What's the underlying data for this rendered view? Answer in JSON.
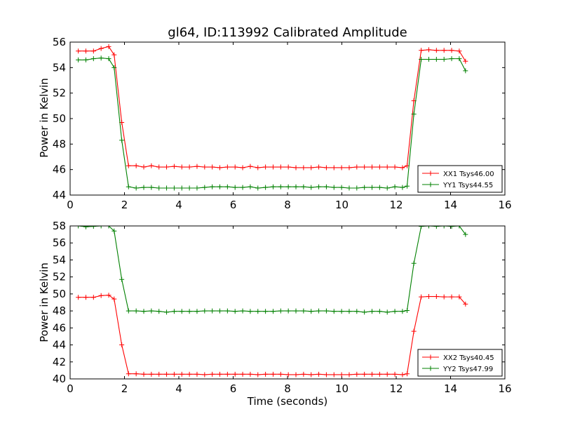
{
  "chart_data": [
    {
      "type": "line",
      "title": "gl64, ID:113992 Calibrated Amplitude",
      "xlabel": "",
      "ylabel": "Power in Kelvin",
      "xlim": [
        0,
        16
      ],
      "ylim": [
        44,
        56
      ],
      "xticks": [
        0,
        2,
        4,
        6,
        8,
        10,
        12,
        14,
        16
      ],
      "yticks": [
        44,
        46,
        48,
        50,
        52,
        54,
        56
      ],
      "grid": false,
      "legend_position": "lower-right",
      "x": [
        0.3,
        0.58,
        0.86,
        1.14,
        1.42,
        1.62,
        1.9,
        2.15,
        2.43,
        2.71,
        2.99,
        3.27,
        3.55,
        3.83,
        4.11,
        4.39,
        4.67,
        4.95,
        5.23,
        5.51,
        5.79,
        6.07,
        6.35,
        6.63,
        6.91,
        7.19,
        7.47,
        7.75,
        8.03,
        8.31,
        8.59,
        8.87,
        9.15,
        9.43,
        9.71,
        9.99,
        10.27,
        10.55,
        10.83,
        11.11,
        11.39,
        11.67,
        11.95,
        12.23,
        12.4,
        12.65,
        12.92,
        13.2,
        13.48,
        13.76,
        14.04,
        14.32,
        14.55
      ],
      "series": [
        {
          "name": "XX1 Tsys46.00",
          "color": "#ff0000",
          "values": [
            55.3,
            55.3,
            55.3,
            55.5,
            55.65,
            55.0,
            49.7,
            46.3,
            46.3,
            46.2,
            46.3,
            46.2,
            46.2,
            46.25,
            46.2,
            46.2,
            46.25,
            46.2,
            46.2,
            46.15,
            46.2,
            46.2,
            46.15,
            46.25,
            46.15,
            46.2,
            46.2,
            46.2,
            46.2,
            46.15,
            46.15,
            46.15,
            46.2,
            46.15,
            46.15,
            46.15,
            46.15,
            46.2,
            46.2,
            46.2,
            46.2,
            46.2,
            46.2,
            46.15,
            46.3,
            51.4,
            55.35,
            55.4,
            55.35,
            55.35,
            55.35,
            55.3,
            54.5
          ]
        },
        {
          "name": "YY1 Tsys44.55",
          "color": "#008000",
          "values": [
            54.6,
            54.6,
            54.7,
            54.75,
            54.7,
            54.0,
            48.3,
            44.65,
            44.55,
            44.6,
            44.6,
            44.55,
            44.55,
            44.55,
            44.55,
            44.55,
            44.55,
            44.6,
            44.65,
            44.65,
            44.65,
            44.6,
            44.6,
            44.65,
            44.55,
            44.6,
            44.65,
            44.65,
            44.65,
            44.65,
            44.65,
            44.6,
            44.65,
            44.65,
            44.6,
            44.6,
            44.55,
            44.55,
            44.6,
            44.6,
            44.6,
            44.55,
            44.65,
            44.6,
            44.7,
            50.35,
            54.65,
            54.65,
            54.65,
            54.65,
            54.7,
            54.7,
            53.75
          ]
        }
      ]
    },
    {
      "type": "line",
      "title": "",
      "xlabel": "Time (seconds)",
      "ylabel": "Power in Kelvin",
      "xlim": [
        0,
        16
      ],
      "ylim": [
        40,
        58
      ],
      "xticks": [
        0,
        2,
        4,
        6,
        8,
        10,
        12,
        14,
        16
      ],
      "yticks": [
        40,
        42,
        44,
        46,
        48,
        50,
        52,
        54,
        56,
        58
      ],
      "grid": false,
      "legend_position": "lower-right",
      "x": [
        0.3,
        0.58,
        0.86,
        1.14,
        1.42,
        1.62,
        1.9,
        2.15,
        2.43,
        2.71,
        2.99,
        3.27,
        3.55,
        3.83,
        4.11,
        4.39,
        4.67,
        4.95,
        5.23,
        5.51,
        5.79,
        6.07,
        6.35,
        6.63,
        6.91,
        7.19,
        7.47,
        7.75,
        8.03,
        8.31,
        8.59,
        8.87,
        9.15,
        9.43,
        9.71,
        9.99,
        10.27,
        10.55,
        10.83,
        11.11,
        11.39,
        11.67,
        11.95,
        12.23,
        12.4,
        12.65,
        12.92,
        13.2,
        13.48,
        13.76,
        14.04,
        14.32,
        14.55
      ],
      "series": [
        {
          "name": "XX2 Tsys40.45",
          "color": "#ff0000",
          "values": [
            49.6,
            49.6,
            49.6,
            49.8,
            49.85,
            49.4,
            44.0,
            40.6,
            40.6,
            40.55,
            40.55,
            40.55,
            40.55,
            40.55,
            40.55,
            40.55,
            40.55,
            40.5,
            40.55,
            40.55,
            40.55,
            40.55,
            40.55,
            40.55,
            40.5,
            40.55,
            40.55,
            40.55,
            40.5,
            40.5,
            40.55,
            40.5,
            40.55,
            40.5,
            40.5,
            40.5,
            40.5,
            40.55,
            40.55,
            40.55,
            40.55,
            40.55,
            40.55,
            40.5,
            40.6,
            45.6,
            49.65,
            49.7,
            49.7,
            49.65,
            49.65,
            49.65,
            48.8
          ]
        },
        {
          "name": "YY2 Tsys47.99",
          "color": "#008000",
          "values": [
            58.0,
            57.9,
            57.95,
            58.0,
            58.0,
            57.4,
            51.7,
            48.0,
            48.0,
            47.95,
            48.0,
            47.95,
            47.85,
            47.95,
            47.95,
            47.95,
            47.95,
            48.0,
            48.0,
            48.0,
            48.0,
            47.95,
            48.0,
            47.95,
            47.95,
            47.95,
            47.95,
            48.0,
            48.0,
            48.0,
            48.0,
            47.95,
            48.0,
            48.0,
            47.95,
            47.95,
            47.95,
            47.95,
            47.85,
            47.95,
            47.95,
            47.85,
            47.95,
            47.95,
            48.05,
            53.6,
            57.95,
            58.0,
            57.95,
            58.0,
            57.95,
            58.0,
            57.0
          ]
        }
      ]
    }
  ]
}
